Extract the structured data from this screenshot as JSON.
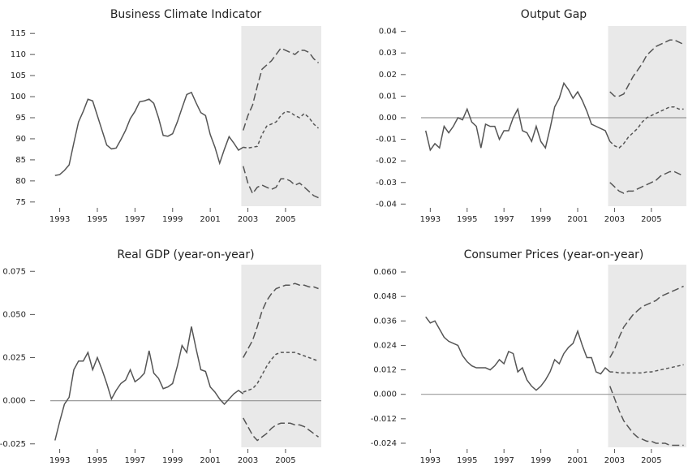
{
  "chart_data": [
    {
      "type": "line",
      "title": "Business Climate Indicator",
      "xlim": [
        1992.5,
        2006.9
      ],
      "xticks": [
        1993,
        1995,
        1997,
        1999,
        2001,
        2003,
        2005
      ],
      "ylim": [
        74,
        116
      ],
      "yticks": [
        75,
        80,
        85,
        90,
        95,
        100,
        105,
        110,
        115
      ],
      "shade": [
        2002.65,
        2006.9
      ],
      "zero_line": false,
      "series": [
        {
          "color": "#555555",
          "dash": "solid",
          "x": [
            1992.75,
            1993,
            1993.25,
            1993.5,
            1993.75,
            1994,
            1994.25,
            1994.5,
            1994.75,
            1995,
            1995.25,
            1995.5,
            1995.75,
            1996,
            1996.25,
            1996.5,
            1996.75,
            1997,
            1997.25,
            1997.5,
            1997.75,
            1998,
            1998.25,
            1998.5,
            1998.75,
            1999,
            1999.25,
            1999.5,
            1999.75,
            2000,
            2000.25,
            2000.5,
            2000.75,
            2001,
            2001.25,
            2001.5,
            2001.75,
            2002,
            2002.25,
            2002.5,
            2002.75
          ],
          "values": [
            81.3,
            81.5,
            82.5,
            83.8,
            89,
            94,
            96.5,
            99.4,
            99,
            95.5,
            92,
            88.5,
            87.6,
            87.8,
            89.8,
            92,
            94.8,
            96.5,
            98.8,
            99,
            99.4,
            98.4,
            95,
            90.8,
            90.6,
            91.2,
            94,
            97.3,
            100.5,
            101,
            98.5,
            96.2,
            95.5,
            91,
            88,
            84.2,
            87.5,
            90.5,
            89,
            87.3,
            88.0
          ]
        },
        {
          "color": "#555555",
          "dash": "short",
          "x": [
            2002.75,
            2003,
            2003.25,
            2003.5,
            2003.75,
            2004,
            2004.25,
            2004.5,
            2004.75,
            2005,
            2005.25,
            2005.5,
            2005.75,
            2006,
            2006.25,
            2006.5,
            2006.75
          ],
          "values": [
            88,
            87.8,
            88,
            88.2,
            91,
            93,
            93.5,
            94,
            95.5,
            96.5,
            96.3,
            95.5,
            95,
            96,
            95,
            93.5,
            92.5
          ]
        },
        {
          "color": "#555555",
          "dash": "long",
          "x": [
            2002.75,
            2003,
            2003.25,
            2003.5,
            2003.75,
            2004,
            2004.25,
            2004.5,
            2004.75,
            2005,
            2005.25,
            2005.5,
            2005.75,
            2006,
            2006.25,
            2006.5,
            2006.75
          ],
          "values": [
            92,
            95.5,
            98,
            102.5,
            106.5,
            107.5,
            108.5,
            110,
            111.5,
            111,
            110.5,
            110,
            111,
            111,
            110.5,
            109,
            108
          ]
        },
        {
          "color": "#555555",
          "dash": "long",
          "x": [
            2002.75,
            2003,
            2003.25,
            2003.5,
            2003.75,
            2004,
            2004.25,
            2004.5,
            2004.75,
            2005,
            2005.25,
            2005.5,
            2005.75,
            2006,
            2006.25,
            2006.5,
            2006.75
          ],
          "values": [
            83.5,
            79.5,
            77,
            78.5,
            79,
            78.5,
            78,
            78.5,
            80.5,
            80.5,
            80,
            79,
            79.5,
            78.5,
            77.5,
            76.5,
            76
          ]
        }
      ]
    },
    {
      "type": "line",
      "title": "Output Gap",
      "xlim": [
        1992.5,
        2006.9
      ],
      "xticks": [
        1993,
        1995,
        1997,
        1999,
        2001,
        2003,
        2005
      ],
      "ylim": [
        -0.041,
        0.041
      ],
      "yticks": [
        0.04,
        0.03,
        0.02,
        0.01,
        {
          "value": 0,
          "label": "0.00"
        },
        -0.01,
        -0.02,
        -0.03,
        -0.04
      ],
      "shade": [
        2002.65,
        2006.9
      ],
      "zero_line": true,
      "series": [
        {
          "color": "#555555",
          "dash": "solid",
          "x": [
            1992.75,
            1993,
            1993.25,
            1993.5,
            1993.75,
            1994,
            1994.25,
            1994.5,
            1994.75,
            1995,
            1995.25,
            1995.5,
            1995.75,
            1996,
            1996.25,
            1996.5,
            1996.75,
            1997,
            1997.25,
            1997.5,
            1997.75,
            1998,
            1998.25,
            1998.5,
            1998.75,
            1999,
            1999.25,
            1999.5,
            1999.75,
            2000,
            2000.25,
            2000.5,
            2000.75,
            2001,
            2001.25,
            2001.5,
            2001.75,
            2002,
            2002.25,
            2002.5,
            2002.75
          ],
          "values": [
            -0.006,
            -0.015,
            -0.012,
            -0.014,
            -0.004,
            -0.007,
            -0.004,
            0,
            -0.001,
            0.004,
            -0.002,
            -0.004,
            -0.014,
            -0.003,
            -0.004,
            -0.004,
            -0.01,
            -0.006,
            -0.006,
            0,
            0.004,
            -0.006,
            -0.007,
            -0.011,
            -0.004,
            -0.011,
            -0.014,
            -0.005,
            0.005,
            0.009,
            0.016,
            0.013,
            0.009,
            0.012,
            0.008,
            0.003,
            -0.003,
            -0.004,
            -0.005,
            -0.006,
            -0.011
          ]
        },
        {
          "color": "#555555",
          "dash": "short",
          "x": [
            2002.75,
            2003,
            2003.25,
            2003.5,
            2003.75,
            2004,
            2004.25,
            2004.5,
            2004.75,
            2005,
            2005.25,
            2005.5,
            2005.75,
            2006,
            2006.25,
            2006.5,
            2006.75
          ],
          "values": [
            -0.011,
            -0.013,
            -0.014,
            -0.012,
            -0.009,
            -0.007,
            -0.005,
            -0.002,
            0,
            0.001,
            0.002,
            0.003,
            0.004,
            0.005,
            0.005,
            0.004,
            0.004
          ]
        },
        {
          "color": "#555555",
          "dash": "long",
          "x": [
            2002.75,
            2003,
            2003.25,
            2003.5,
            2003.75,
            2004,
            2004.25,
            2004.5,
            2004.75,
            2005,
            2005.25,
            2005.5,
            2005.75,
            2006,
            2006.25,
            2006.5,
            2006.75
          ],
          "values": [
            0.012,
            0.01,
            0.01,
            0.011,
            0.015,
            0.019,
            0.022,
            0.025,
            0.029,
            0.031,
            0.033,
            0.034,
            0.035,
            0.036,
            0.036,
            0.035,
            0.034
          ]
        },
        {
          "color": "#555555",
          "dash": "long",
          "x": [
            2002.75,
            2003,
            2003.25,
            2003.5,
            2003.75,
            2004,
            2004.25,
            2004.5,
            2004.75,
            2005,
            2005.25,
            2005.5,
            2005.75,
            2006,
            2006.25,
            2006.5,
            2006.75
          ],
          "values": [
            -0.03,
            -0.032,
            -0.034,
            -0.035,
            -0.034,
            -0.034,
            -0.033,
            -0.032,
            -0.031,
            -0.03,
            -0.029,
            -0.027,
            -0.026,
            -0.025,
            -0.025,
            -0.026,
            -0.027
          ]
        }
      ]
    },
    {
      "type": "line",
      "title": "Real GDP (year-on-year)",
      "xlim": [
        1992.5,
        2006.9
      ],
      "xticks": [
        1993,
        1995,
        1997,
        1999,
        2001,
        2003,
        2005
      ],
      "ylim": [
        -0.027,
        0.077
      ],
      "yticks": [
        0.075,
        {
          "value": 0.05,
          "label": "0.050"
        },
        0.025,
        {
          "value": 0,
          "label": "0.000"
        },
        -0.025
      ],
      "shade": [
        2002.65,
        2006.9
      ],
      "zero_line": true,
      "series": [
        {
          "color": "#555555",
          "dash": "solid",
          "x": [
            1992.75,
            1993,
            1993.25,
            1993.5,
            1993.75,
            1994,
            1994.25,
            1994.5,
            1994.75,
            1995,
            1995.25,
            1995.5,
            1995.75,
            1996,
            1996.25,
            1996.5,
            1996.75,
            1997,
            1997.25,
            1997.5,
            1997.75,
            1998,
            1998.25,
            1998.5,
            1998.75,
            1999,
            1999.25,
            1999.5,
            1999.75,
            2000,
            2000.25,
            2000.5,
            2000.75,
            2001,
            2001.25,
            2001.5,
            2001.75,
            2002,
            2002.25,
            2002.5,
            2002.75
          ],
          "values": [
            -0.023,
            -0.012,
            -0.002,
            0.002,
            0.018,
            0.023,
            0.023,
            0.028,
            0.018,
            0.025,
            0.018,
            0.01,
            0.001,
            0.006,
            0.01,
            0.012,
            0.018,
            0.011,
            0.013,
            0.016,
            0.029,
            0.016,
            0.013,
            0.007,
            0.008,
            0.01,
            0.02,
            0.032,
            0.028,
            0.043,
            0.03,
            0.018,
            0.017,
            0.008,
            0.005,
            0.001,
            -0.002,
            0.001,
            0.004,
            0.006,
            0.004
          ]
        },
        {
          "color": "#555555",
          "dash": "short",
          "x": [
            2002.75,
            2003,
            2003.25,
            2003.5,
            2003.75,
            2004,
            2004.25,
            2004.5,
            2004.75,
            2005,
            2005.25,
            2005.5,
            2005.75,
            2006,
            2006.25,
            2006.5,
            2006.75
          ],
          "values": [
            0.005,
            0.006,
            0.007,
            0.01,
            0.015,
            0.02,
            0.024,
            0.027,
            0.028,
            0.028,
            0.028,
            0.028,
            0.027,
            0.026,
            0.025,
            0.024,
            0.023
          ]
        },
        {
          "color": "#555555",
          "dash": "long",
          "x": [
            2002.75,
            2003,
            2003.25,
            2003.5,
            2003.75,
            2004,
            2004.25,
            2004.5,
            2004.75,
            2005,
            2005.25,
            2005.5,
            2005.75,
            2006,
            2006.25,
            2006.5,
            2006.75
          ],
          "values": [
            0.025,
            0.03,
            0.035,
            0.043,
            0.052,
            0.058,
            0.062,
            0.065,
            0.066,
            0.067,
            0.067,
            0.068,
            0.067,
            0.067,
            0.066,
            0.066,
            0.065
          ]
        },
        {
          "color": "#555555",
          "dash": "long",
          "x": [
            2002.75,
            2003,
            2003.25,
            2003.5,
            2003.75,
            2004,
            2004.25,
            2004.5,
            2004.75,
            2005,
            2005.25,
            2005.5,
            2005.75,
            2006,
            2006.25,
            2006.5,
            2006.75
          ],
          "values": [
            -0.01,
            -0.015,
            -0.02,
            -0.023,
            -0.021,
            -0.019,
            -0.016,
            -0.014,
            -0.013,
            -0.013,
            -0.013,
            -0.014,
            -0.014,
            -0.015,
            -0.017,
            -0.019,
            -0.021
          ]
        }
      ]
    },
    {
      "type": "line",
      "title": "Consumer Prices (year-on-year)",
      "xlim": [
        1992.5,
        2006.9
      ],
      "xticks": [
        1993,
        1995,
        1997,
        1999,
        2001,
        2003,
        2005
      ],
      "ylim": [
        -0.026,
        0.062
      ],
      "yticks": [
        {
          "value": 0.06,
          "label": "0.060"
        },
        0.048,
        0.036,
        0.024,
        0.012,
        {
          "value": 0,
          "label": "0.000"
        },
        -0.012,
        -0.024
      ],
      "shade": [
        2002.65,
        2006.9
      ],
      "zero_line": true,
      "series": [
        {
          "color": "#555555",
          "dash": "solid",
          "x": [
            1992.75,
            1993,
            1993.25,
            1993.5,
            1993.75,
            1994,
            1994.25,
            1994.5,
            1994.75,
            1995,
            1995.25,
            1995.5,
            1995.75,
            1996,
            1996.25,
            1996.5,
            1996.75,
            1997,
            1997.25,
            1997.5,
            1997.75,
            1998,
            1998.25,
            1998.5,
            1998.75,
            1999,
            1999.25,
            1999.5,
            1999.75,
            2000,
            2000.25,
            2000.5,
            2000.75,
            2001,
            2001.25,
            2001.5,
            2001.75,
            2002,
            2002.25,
            2002.5,
            2002.75
          ],
          "values": [
            0.038,
            0.035,
            0.036,
            0.032,
            0.028,
            0.026,
            0.025,
            0.024,
            0.019,
            0.016,
            0.014,
            0.013,
            0.013,
            0.013,
            0.012,
            0.014,
            0.017,
            0.015,
            0.021,
            0.02,
            0.011,
            0.013,
            0.007,
            0.004,
            0.002,
            0.004,
            0.007,
            0.011,
            0.017,
            0.015,
            0.02,
            0.023,
            0.025,
            0.031,
            0.024,
            0.018,
            0.018,
            0.011,
            0.01,
            0.013,
            0.011
          ]
        },
        {
          "color": "#555555",
          "dash": "short",
          "x": [
            2002.75,
            2003,
            2003.25,
            2003.5,
            2003.75,
            2004,
            2004.25,
            2004.5,
            2004.75,
            2005,
            2005.25,
            2005.5,
            2005.75,
            2006,
            2006.25,
            2006.5,
            2006.75
          ],
          "values": [
            0.011,
            0.011,
            0.0105,
            0.0105,
            0.0105,
            0.0105,
            0.0105,
            0.0105,
            0.011,
            0.011,
            0.0115,
            0.012,
            0.0125,
            0.013,
            0.0135,
            0.014,
            0.0145
          ]
        },
        {
          "color": "#555555",
          "dash": "long",
          "x": [
            2002.75,
            2003,
            2003.25,
            2003.5,
            2003.75,
            2004,
            2004.25,
            2004.5,
            2004.75,
            2005,
            2005.25,
            2005.5,
            2005.75,
            2006,
            2006.25,
            2006.5,
            2006.75
          ],
          "values": [
            0.018,
            0.022,
            0.028,
            0.033,
            0.036,
            0.039,
            0.041,
            0.043,
            0.044,
            0.045,
            0.046,
            0.048,
            0.049,
            0.05,
            0.051,
            0.052,
            0.053
          ]
        },
        {
          "color": "#555555",
          "dash": "long",
          "x": [
            2002.75,
            2003,
            2003.25,
            2003.5,
            2003.75,
            2004,
            2004.25,
            2004.5,
            2004.75,
            2005,
            2005.25,
            2005.5,
            2005.75,
            2006,
            2006.25,
            2006.5,
            2006.75
          ],
          "values": [
            0.004,
            -0.002,
            -0.008,
            -0.013,
            -0.016,
            -0.019,
            -0.021,
            -0.022,
            -0.023,
            -0.023,
            -0.024,
            -0.024,
            -0.024,
            -0.025,
            -0.025,
            -0.025,
            -0.025
          ]
        }
      ]
    }
  ]
}
